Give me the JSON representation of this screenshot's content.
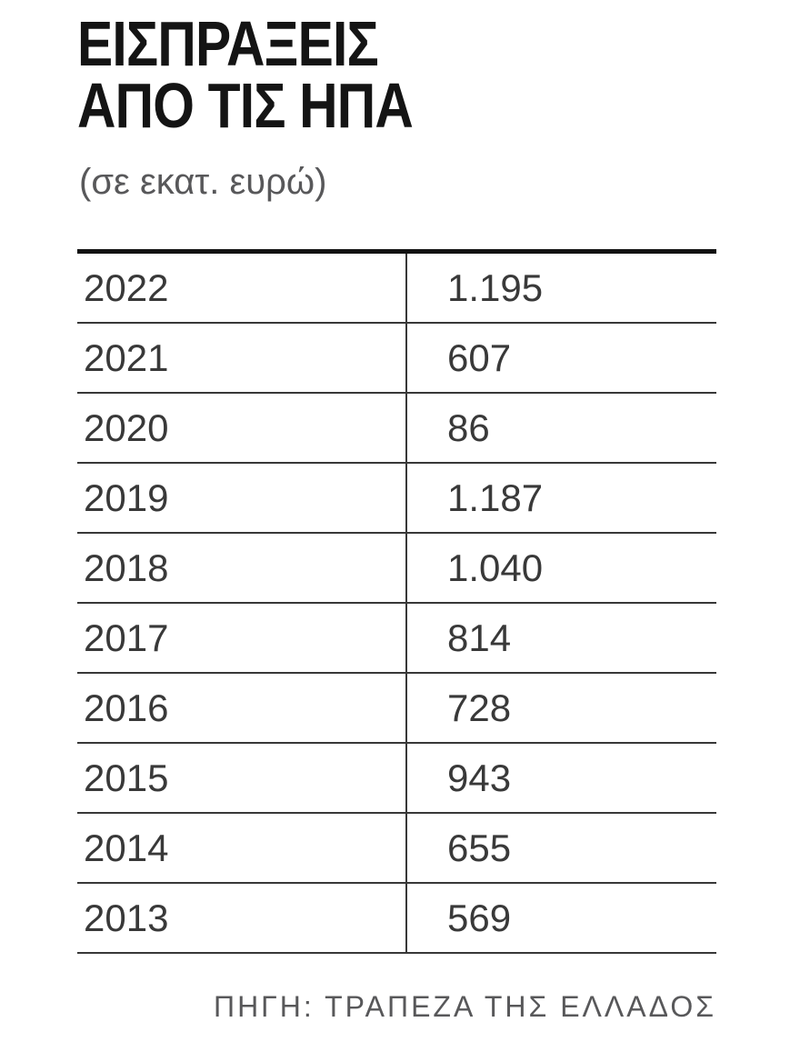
{
  "header": {
    "title_line1": "ΕΙΣΠΡΑΞΕΙΣ",
    "title_line2": "ΑΠΟ ΤΙΣ ΗΠΑ",
    "subtitle": "(σε εκατ. ευρώ)"
  },
  "table": {
    "rows": [
      {
        "year": "2022",
        "value": "1.195"
      },
      {
        "year": "2021",
        "value": "607"
      },
      {
        "year": "2020",
        "value": "86"
      },
      {
        "year": "2019",
        "value": "1.187"
      },
      {
        "year": "2018",
        "value": "1.040"
      },
      {
        "year": "2017",
        "value": "814"
      },
      {
        "year": "2016",
        "value": "728"
      },
      {
        "year": "2015",
        "value": "943"
      },
      {
        "year": "2014",
        "value": "655"
      },
      {
        "year": "2013",
        "value": "569"
      }
    ]
  },
  "footer": {
    "source": "ΠΗΓΗ: ΤΡΑΠΕΖΑ ΤΗΣ ΕΛΛΑΔΟΣ"
  },
  "colors": {
    "title_text": "#141414",
    "muted_text": "#58585a",
    "cell_text": "#393939",
    "rule_thick": "#121212",
    "rule_thin": "#383838",
    "background": "#ffffff"
  },
  "chart_data": {
    "type": "table",
    "title": "ΕΙΣΠΡΑΞΕΙΣ ΑΠΟ ΤΙΣ ΗΠΑ",
    "subtitle": "(σε εκατ. ευρώ)",
    "unit": "εκατ. ευρώ",
    "categories": [
      "2022",
      "2021",
      "2020",
      "2019",
      "2018",
      "2017",
      "2016",
      "2015",
      "2014",
      "2013"
    ],
    "values": [
      1195,
      607,
      86,
      1187,
      1040,
      814,
      728,
      943,
      655,
      569
    ],
    "source": "ΠΗΓΗ: ΤΡΑΠΕΖΑ ΤΗΣ ΕΛΛΑΔΟΣ",
    "legend_position": "none",
    "grid": "horizontal-rules"
  }
}
